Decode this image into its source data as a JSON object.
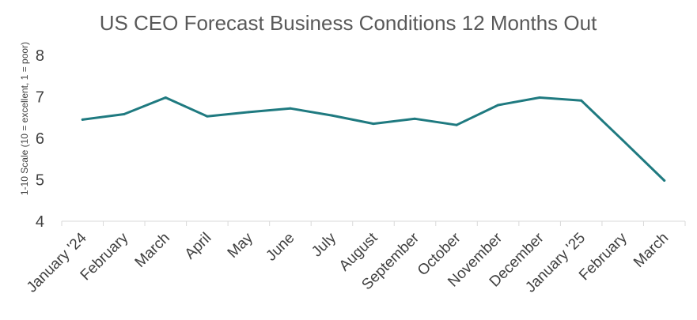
{
  "chart_data": {
    "type": "line",
    "title": "US CEO Forecast Business Conditions 12 Months Out",
    "ylabel": "1-10 Scale (10 = excellent, 1 = poor)",
    "xlabel": "",
    "categories": [
      "January '24",
      "February",
      "March",
      "April",
      "May",
      "June",
      "July",
      "August",
      "September",
      "October",
      "November",
      "December",
      "January '25",
      "February",
      "March"
    ],
    "series": [
      {
        "values": [
          6.45,
          6.58,
          6.98,
          6.53,
          6.63,
          6.72,
          6.55,
          6.35,
          6.47,
          6.32,
          6.8,
          6.98,
          6.91,
          5.95,
          4.98
        ],
        "color": "#1f7a80"
      }
    ],
    "ylim": [
      4,
      8
    ],
    "yticks": [
      "4",
      "5",
      "6",
      "7",
      "8"
    ],
    "grid": false,
    "legend": "none"
  }
}
